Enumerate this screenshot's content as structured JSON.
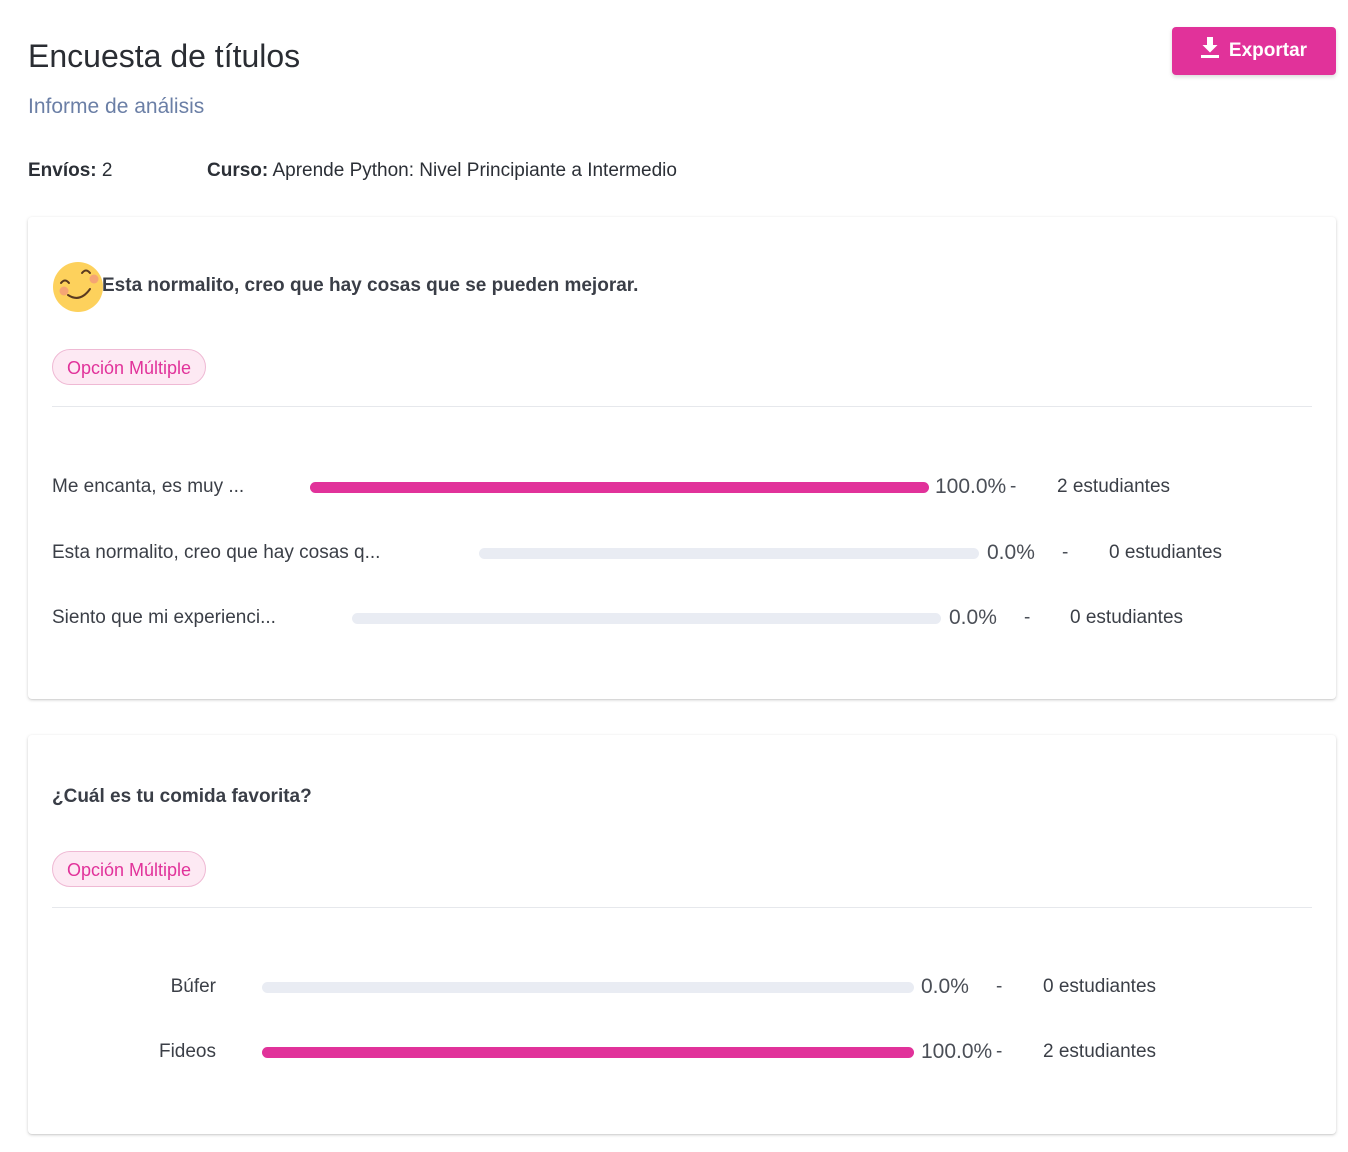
{
  "header": {
    "title": "Encuesta de títulos",
    "subtitle": "Informe de análisis",
    "export_label": "Exportar",
    "export_icon": "download-icon"
  },
  "meta": {
    "submissions_label": "Envíos:",
    "submissions_value": "2",
    "course_label": "Curso:",
    "course_value": "Aprende Python: Nivel Principiante a Intermedio"
  },
  "questions": [
    {
      "icon": "smiling-face-icon",
      "title": "Esta normalito, creo que hay cosas que se pueden mejorar.",
      "type_label": "Opción Múltiple",
      "options": [
        {
          "label": "Me encanta, es muy ...",
          "fraction": 1.0,
          "percent": "100.0%",
          "dash": "-",
          "count": "2 estudiantes"
        },
        {
          "label": "Esta normalito, creo que hay cosas q...",
          "fraction": 0.0,
          "percent": "0.0%",
          "dash": "-",
          "count": "0 estudiantes"
        },
        {
          "label": "Siento que mi experienci...",
          "fraction": 0.0,
          "percent": "0.0%",
          "dash": "-",
          "count": "0 estudiantes"
        }
      ]
    },
    {
      "title": "¿Cuál es tu comida favorita?",
      "type_label": "Opción Múltiple",
      "options": [
        {
          "label": "Búfer",
          "fraction": 0.0,
          "percent": "0.0%",
          "dash": "-",
          "count": "0 estudiantes"
        },
        {
          "label": "Fideos",
          "fraction": 1.0,
          "percent": "100.0%",
          "dash": "-",
          "count": "2 estudiantes"
        }
      ]
    }
  ],
  "colors": {
    "accent": "#e1329a",
    "track": "#e9ecf3",
    "subtitle": "#6b7fa6"
  }
}
